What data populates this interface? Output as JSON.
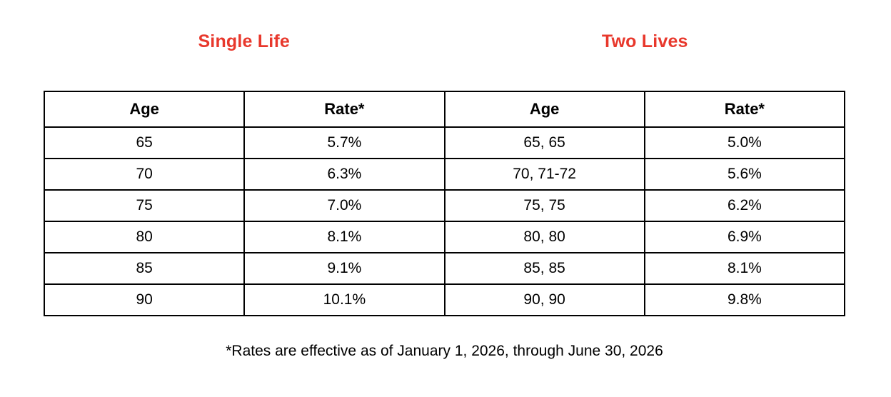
{
  "accent_color": "#e8382c",
  "headings": {
    "single": "Single Life",
    "two": "Two Lives"
  },
  "table": {
    "columns": [
      "Age",
      "Rate*",
      "Age",
      "Rate*"
    ],
    "rows": [
      [
        "65",
        "5.7%",
        "65, 65",
        "5.0%"
      ],
      [
        "70",
        "6.3%",
        "70, 71-72",
        "5.6%"
      ],
      [
        "75",
        "7.0%",
        "75, 75",
        "6.2%"
      ],
      [
        "80",
        "8.1%",
        "80, 80",
        "6.9%"
      ],
      [
        "85",
        "9.1%",
        "85, 85",
        "8.1%"
      ],
      [
        "90",
        "10.1%",
        "90, 90",
        "9.8%"
      ]
    ]
  },
  "footnote": "*Rates are effective as of January 1, 2026, through June 30, 2026"
}
